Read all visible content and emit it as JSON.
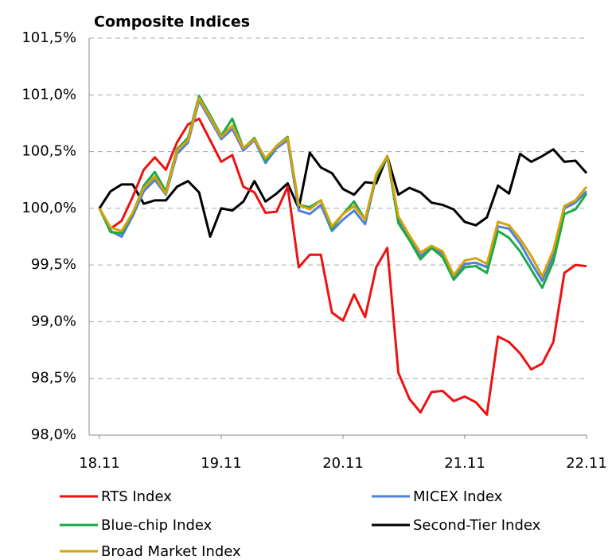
{
  "chart_data": {
    "type": "line",
    "title": "Composite Indices",
    "x": [
      0,
      1,
      2,
      3,
      4,
      5,
      6,
      7,
      8,
      9,
      10,
      11,
      12,
      13,
      14,
      15,
      16,
      17,
      18,
      19,
      20,
      21,
      22,
      23,
      24,
      25,
      26,
      27,
      28,
      29,
      30,
      31,
      32,
      33,
      34,
      35,
      36,
      37,
      38,
      39,
      40,
      41,
      42,
      43,
      44
    ],
    "xlim": [
      0,
      44
    ],
    "xticks": [
      {
        "value": 0,
        "label": "18.11"
      },
      {
        "value": 11,
        "label": "19.11"
      },
      {
        "value": 22,
        "label": "20.11"
      },
      {
        "value": 33,
        "label": "21.11"
      },
      {
        "value": 44,
        "label": "22.11"
      }
    ],
    "ylim": [
      98.0,
      101.5
    ],
    "yticks": [
      {
        "value": 98.0,
        "label": "98,0%"
      },
      {
        "value": 98.5,
        "label": "98,5%"
      },
      {
        "value": 99.0,
        "label": "99,0%"
      },
      {
        "value": 99.5,
        "label": "99,5%"
      },
      {
        "value": 100.0,
        "label": "100,0%"
      },
      {
        "value": 100.5,
        "label": "100,5%"
      },
      {
        "value": 101.0,
        "label": "101,0%"
      },
      {
        "value": 101.5,
        "label": "101,5%"
      }
    ],
    "grid": true,
    "series": [
      {
        "name": "RTS Index",
        "color": "#ee1111",
        "values": [
          100,
          99.82,
          99.89,
          100.1,
          100.34,
          100.45,
          100.34,
          100.58,
          100.74,
          100.79,
          100.6,
          100.41,
          100.47,
          100.19,
          100.14,
          99.96,
          99.97,
          100.19,
          99.48,
          99.59,
          99.59,
          99.08,
          99.01,
          99.24,
          99.04,
          99.48,
          99.65,
          98.55,
          98.32,
          98.2,
          98.38,
          98.39,
          98.3,
          98.34,
          98.29,
          98.18,
          98.87,
          98.82,
          98.72,
          98.58,
          98.63,
          98.82,
          99.43,
          99.5,
          99.49
        ]
      },
      {
        "name": "MICEX Index",
        "color": "#4f7fe0",
        "values": [
          100,
          99.8,
          99.75,
          99.93,
          100.15,
          100.25,
          100.12,
          100.48,
          100.58,
          100.95,
          100.78,
          100.61,
          100.7,
          100.51,
          100.6,
          100.4,
          100.53,
          100.6,
          99.98,
          99.95,
          100.03,
          99.8,
          99.9,
          99.98,
          99.86,
          100.28,
          100.45,
          99.9,
          99.73,
          99.58,
          99.65,
          99.6,
          99.38,
          99.51,
          99.52,
          99.48,
          99.84,
          99.82,
          99.69,
          99.52,
          99.36,
          99.58,
          100.0,
          100.05,
          100.15
        ]
      },
      {
        "name": "Blue-chip Index",
        "color": "#1aaa44",
        "values": [
          100,
          99.79,
          99.78,
          99.95,
          100.2,
          100.32,
          100.15,
          100.52,
          100.62,
          100.99,
          100.82,
          100.64,
          100.79,
          100.53,
          100.62,
          100.42,
          100.55,
          100.63,
          100.03,
          100.01,
          100.07,
          99.82,
          99.95,
          100.06,
          99.9,
          100.28,
          100.46,
          99.87,
          99.72,
          99.55,
          99.65,
          99.57,
          99.37,
          99.48,
          99.49,
          99.43,
          99.8,
          99.74,
          99.62,
          99.46,
          99.3,
          99.53,
          99.95,
          99.99,
          100.13
        ]
      },
      {
        "name": "Second-Tier Index",
        "color": "#000000",
        "values": [
          100,
          100.15,
          100.21,
          100.21,
          100.04,
          100.07,
          100.07,
          100.19,
          100.24,
          100.14,
          99.75,
          100.0,
          99.98,
          100.06,
          100.24,
          100.06,
          100.13,
          100.22,
          100.0,
          100.49,
          100.36,
          100.31,
          100.17,
          100.12,
          100.23,
          100.22,
          100.46,
          100.12,
          100.18,
          100.14,
          100.05,
          100.03,
          99.99,
          99.88,
          99.85,
          99.92,
          100.2,
          100.13,
          100.48,
          100.41,
          100.46,
          100.52,
          100.41,
          100.42,
          100.31
        ]
      },
      {
        "name": "Broad Market Index",
        "color": "#d4a20a",
        "values": [
          100,
          99.83,
          99.8,
          99.96,
          100.18,
          100.28,
          100.13,
          100.51,
          100.6,
          100.97,
          100.8,
          100.63,
          100.73,
          100.53,
          100.61,
          100.44,
          100.55,
          100.62,
          100.03,
          99.99,
          100.07,
          99.84,
          99.95,
          100.02,
          99.9,
          100.3,
          100.46,
          99.93,
          99.76,
          99.61,
          99.67,
          99.62,
          99.41,
          99.54,
          99.56,
          99.51,
          99.88,
          99.85,
          99.73,
          99.58,
          99.4,
          99.63,
          100.02,
          100.07,
          100.19
        ]
      }
    ]
  }
}
